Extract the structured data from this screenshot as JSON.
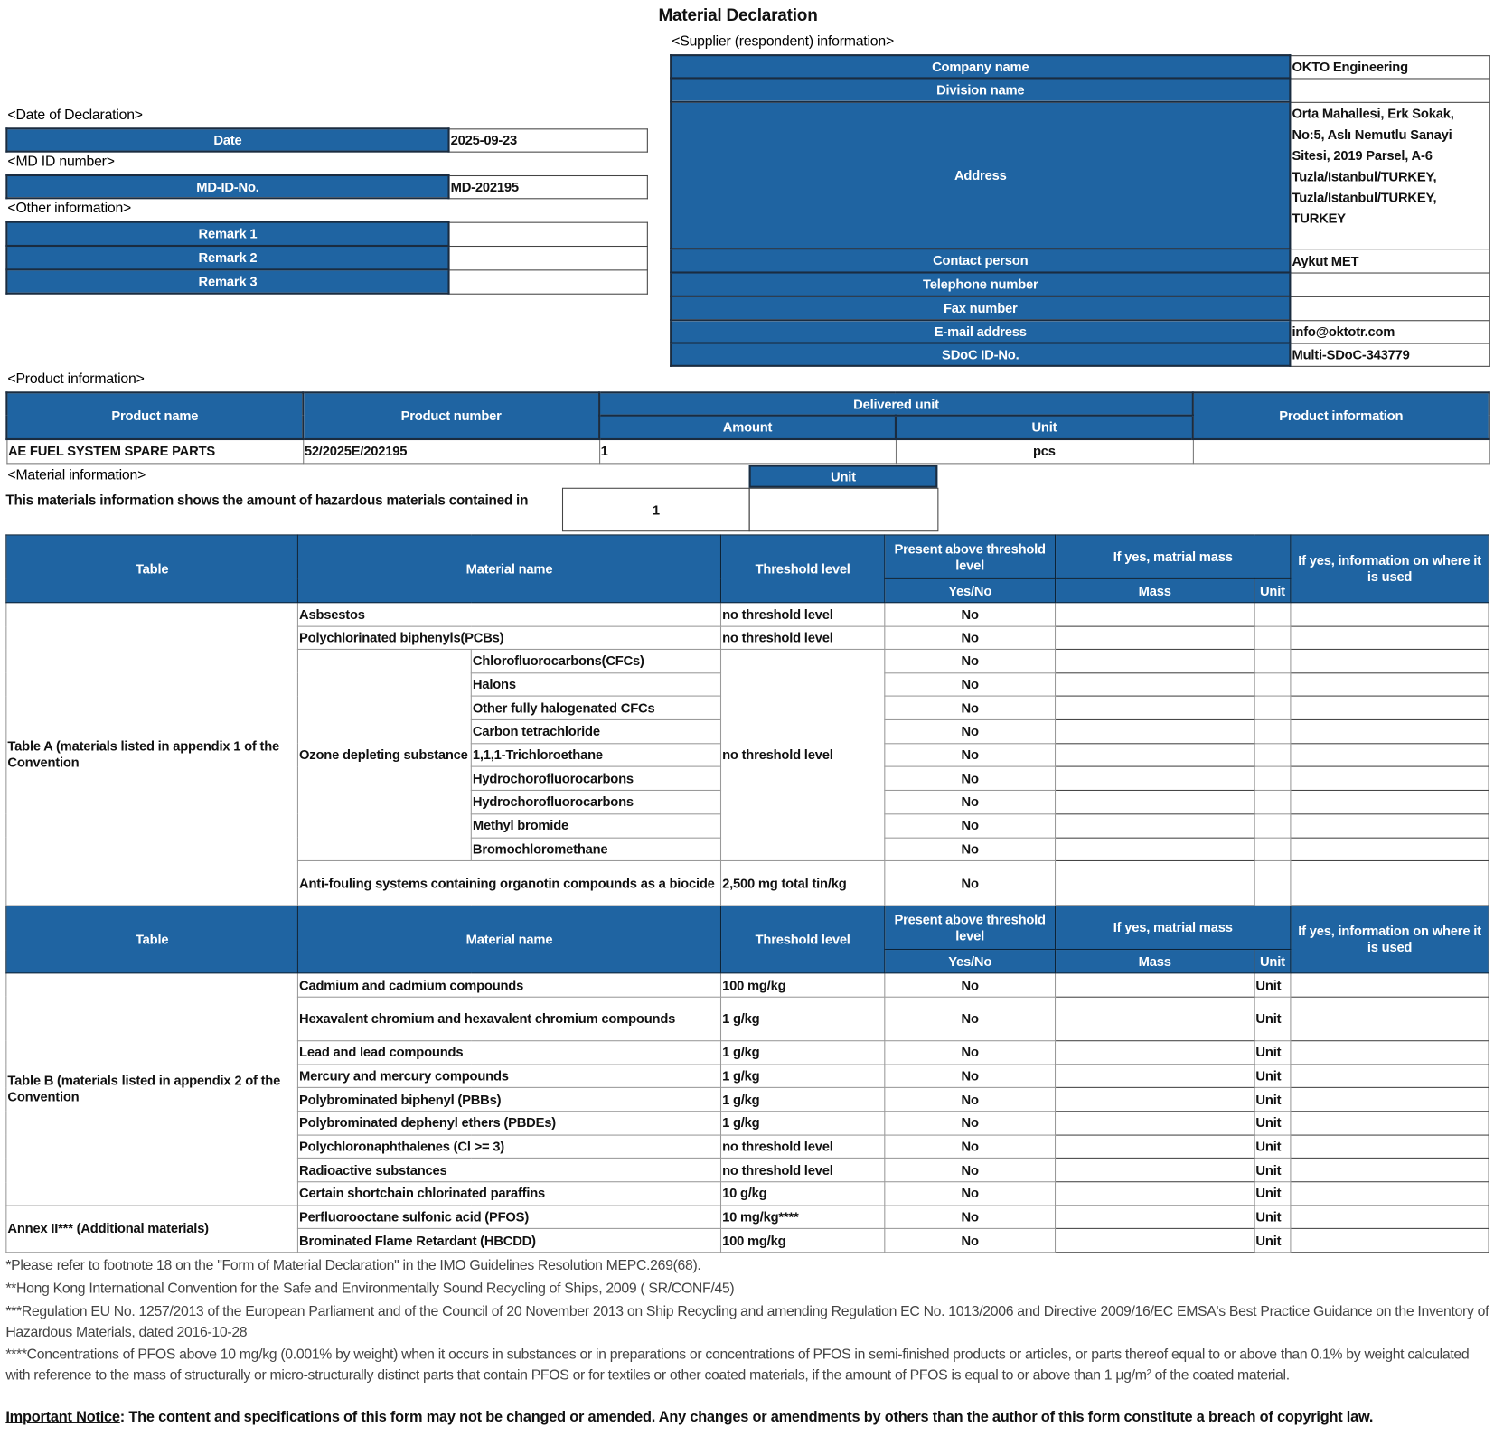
{
  "title": "Material Declaration",
  "supplier": {
    "heading": "<Supplier (respondent) information>",
    "rows": [
      {
        "label": "Company name",
        "value": "OKTO Engineering"
      },
      {
        "label": "Division name",
        "value": ""
      },
      {
        "label": "Address",
        "value": "Orta Mahallesi, Erk Sokak, No:5, Aslı Nemutlu Sanayi Sitesi, 2019 Parsel, A-6 Tuzla/Istanbul/TURKEY, Tuzla/Istanbul/TURKEY, TURKEY"
      },
      {
        "label": "Contact person",
        "value": "Aykut MET"
      },
      {
        "label": "Telephone number",
        "value": ""
      },
      {
        "label": "Fax number",
        "value": ""
      },
      {
        "label": "E-mail address",
        "value": "info@oktotr.com"
      },
      {
        "label": "SDoC ID-No.",
        "value": "Multi-SDoC-343779"
      }
    ]
  },
  "date": {
    "heading": "<Date of Declaration>",
    "label": "Date",
    "value": "2025-09-23"
  },
  "md_id": {
    "heading": "<MD ID number>",
    "label": "MD-ID-No.",
    "value": "MD-202195"
  },
  "other": {
    "heading": "<Other information>",
    "remarks": [
      {
        "label": "Remark 1",
        "value": ""
      },
      {
        "label": "Remark 2",
        "value": ""
      },
      {
        "label": "Remark 3",
        "value": ""
      }
    ]
  },
  "product": {
    "heading": "<Product information>",
    "headers": {
      "name": "Product name",
      "number": "Product number",
      "delivered": "Delivered unit",
      "amount": "Amount",
      "unit": "Unit",
      "info": "Product information"
    },
    "row": {
      "name": "AE FUEL SYSTEM SPARE PARTS",
      "number": "52/2025E/202195",
      "amount": "1",
      "unit": "pcs",
      "info": ""
    }
  },
  "material": {
    "heading": "<Material information>",
    "description": "This materials information shows the amount of hazardous materials contained in",
    "amount": "1",
    "unit_label": "Unit",
    "unit_value": "",
    "headers": {
      "table": "Table",
      "material": "Material name",
      "threshold": "Threshold level",
      "present": "Present above threshold level",
      "yesno": "Yes/No",
      "mass_group": "If yes, matrial mass",
      "mass": "Mass",
      "unit": "Unit",
      "info": "If yes, information on where it is used"
    },
    "table_a": {
      "label": "Table A (materials listed in appendix 1 of the Convention",
      "rows": [
        {
          "material": "Asbsestos",
          "threshold": "no threshold level",
          "present": "No",
          "mass": "",
          "unit": "",
          "info": ""
        },
        {
          "material": "Polychlorinated biphenyls(PCBs)",
          "threshold": "no threshold level",
          "present": "No",
          "mass": "",
          "unit": "",
          "info": ""
        }
      ],
      "ozone": {
        "label": "Ozone depleting substance",
        "threshold": "no threshold level",
        "rows": [
          {
            "material": "Chlorofluorocarbons(CFCs)",
            "present": "No",
            "mass": "",
            "unit": "",
            "info": ""
          },
          {
            "material": "Halons",
            "present": "No",
            "mass": "",
            "unit": "",
            "info": ""
          },
          {
            "material": "Other fully halogenated CFCs",
            "present": "No",
            "mass": "",
            "unit": "",
            "info": ""
          },
          {
            "material": "Carbon tetrachloride",
            "present": "No",
            "mass": "",
            "unit": "",
            "info": ""
          },
          {
            "material": "1,1,1-Trichloroethane",
            "present": "No",
            "mass": "",
            "unit": "",
            "info": ""
          },
          {
            "material": "Hydrochorofluorocarbons",
            "present": "No",
            "mass": "",
            "unit": "",
            "info": ""
          },
          {
            "material": "Hydrochorofluorocarbons",
            "present": "No",
            "mass": "",
            "unit": "",
            "info": ""
          },
          {
            "material": "Methyl bromide",
            "present": "No",
            "mass": "",
            "unit": "",
            "info": ""
          },
          {
            "material": "Bromochloromethane",
            "present": "No",
            "mass": "",
            "unit": "",
            "info": ""
          }
        ]
      },
      "antifouling": {
        "material": "Anti-fouling systems containing organotin compounds as a biocide",
        "threshold": "2,500 mg total tin/kg",
        "present": "No",
        "mass": "",
        "unit": "",
        "info": ""
      }
    },
    "table_b": {
      "label": "Table B (materials listed in appendix 2 of the Convention",
      "rows": [
        {
          "material": "Cadmium and cadmium compounds",
          "threshold": "100 mg/kg",
          "present": "No",
          "mass": "",
          "unit": "Unit",
          "info": ""
        },
        {
          "material": "Hexavalent chromium and hexavalent chromium compounds",
          "threshold": "1 g/kg",
          "present": "No",
          "mass": "",
          "unit": "Unit",
          "info": ""
        },
        {
          "material": "Lead and lead compounds",
          "threshold": "1 g/kg",
          "present": "No",
          "mass": "",
          "unit": "Unit",
          "info": ""
        },
        {
          "material": "Mercury and mercury compounds",
          "threshold": "1 g/kg",
          "present": "No",
          "mass": "",
          "unit": "Unit",
          "info": ""
        },
        {
          "material": "Polybrominated biphenyl (PBBs)",
          "threshold": "1 g/kg",
          "present": "No",
          "mass": "",
          "unit": "Unit",
          "info": ""
        },
        {
          "material": "Polybrominated dephenyl ethers (PBDEs)",
          "threshold": "1 g/kg",
          "present": "No",
          "mass": "",
          "unit": "Unit",
          "info": ""
        },
        {
          "material": "Polychloronaphthalenes (Cl >= 3)",
          "threshold": "no threshold level",
          "present": "No",
          "mass": "",
          "unit": "Unit",
          "info": ""
        },
        {
          "material": "Radioactive substances",
          "threshold": "no threshold level",
          "present": "No",
          "mass": "",
          "unit": "Unit",
          "info": ""
        },
        {
          "material": "Certain shortchain chlorinated paraffins",
          "threshold": "10 g/kg",
          "present": "No",
          "mass": "",
          "unit": "Unit",
          "info": ""
        }
      ]
    },
    "annex": {
      "label": "Annex II*** (Additional materials)",
      "rows": [
        {
          "material": "Perfluorooctane sulfonic acid (PFOS)",
          "threshold": "10 mg/kg****",
          "present": "No",
          "mass": "",
          "unit": "Unit",
          "info": ""
        },
        {
          "material": "Brominated Flame Retardant (HBCDD)",
          "threshold": "100 mg/kg",
          "present": "No",
          "mass": "",
          "unit": "Unit",
          "info": ""
        }
      ]
    }
  },
  "footnotes": [
    "*Please refer to footnote 18 on the \"Form of Material Declaration\" in the IMO Guidelines Resolution MEPC.269(68).",
    "**Hong Kong International Convention for the Safe and Environmentally Sound Recycling of Ships, 2009 ( SR/CONF/45)",
    "***Regulation EU No. 1257/2013 of the European Parliament and of the Council of 20 November 2013 on Ship Recycling and amending Regulation EC No. 1013/2006 and Directive 2009/16/EC EMSA's Best Practice Guidance on the Inventory of Hazardous Materials, dated 2016-10-28",
    "****Concentrations of PFOS above 10 mg/kg (0.001% by weight) when it occurs in substances or in preparations or concentrations of PFOS in semi-finished products or articles, or parts thereof equal to or above than 0.1% by weight calculated with reference to the mass of structurally or micro-structurally distinct parts that contain PFOS or for textiles or other coated materials, if the amount of PFOS is equal to or above than 1 μg/m² of the coated material."
  ],
  "notice": {
    "label": "Important Notice",
    "text": ": The content and specifications of this form may not be changed or amended. Any changes or amendments by others than the author of this form constitute a breach of copyright law."
  },
  "colors": {
    "header_blue": "#1f64a2"
  }
}
